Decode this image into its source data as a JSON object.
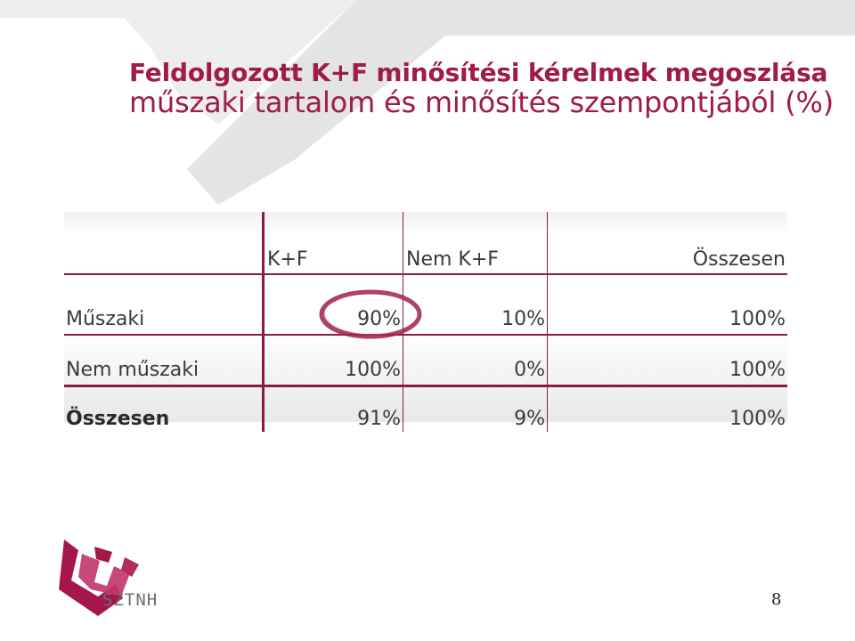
{
  "slide": {
    "title_line1": "Feldolgozott K+F minősítési kérelmek megoszlása",
    "title_line2": "műszaki tartalom és minősítés szempontjából (%)",
    "page_number": "8",
    "logo_text": "SZTNH"
  },
  "table": {
    "headers": [
      "",
      "K+F",
      "Nem K+F",
      "Összesen"
    ],
    "rows": [
      {
        "label": "Műszaki",
        "values": [
          "90%",
          "10%",
          "100%"
        ],
        "bold_label": false
      },
      {
        "label": "Nem műszaki",
        "values": [
          "100%",
          "0%",
          "100%"
        ],
        "bold_label": false
      },
      {
        "label": "Összesen",
        "values": [
          "91%",
          "9%",
          "100%"
        ],
        "bold_label": true
      }
    ],
    "highlighted_cell": "Műszaki / K+F"
  },
  "colors": {
    "accent": "#9e1b4a",
    "table_rule": "#8b1a43",
    "text": "#3a3a3a",
    "background_shape": "#e9e9e9"
  },
  "icons": [
    "sztnh-logo-icon",
    "highlight-ring-icon"
  ]
}
